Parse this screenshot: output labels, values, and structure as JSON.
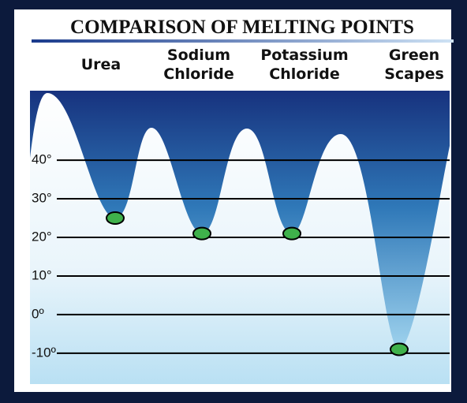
{
  "chart_data": {
    "type": "melting-valley",
    "title": "COMPARISON OF MELTING POINTS",
    "categories": [
      "Urea",
      "Sodium Chloride",
      "Potassium Chloride",
      "Green Scapes"
    ],
    "values": [
      25,
      21,
      21,
      -9
    ],
    "color": "#3fb14b",
    "ylim": [
      -18,
      58
    ],
    "yticks": [
      {
        "value": 40,
        "label": "40°"
      },
      {
        "value": 30,
        "label": "30°"
      },
      {
        "value": 20,
        "label": "20°"
      },
      {
        "value": 10,
        "label": "10°"
      },
      {
        "value": 0,
        "label": "0º"
      },
      {
        "value": -10,
        "label": "-10º"
      }
    ],
    "grid": true
  }
}
